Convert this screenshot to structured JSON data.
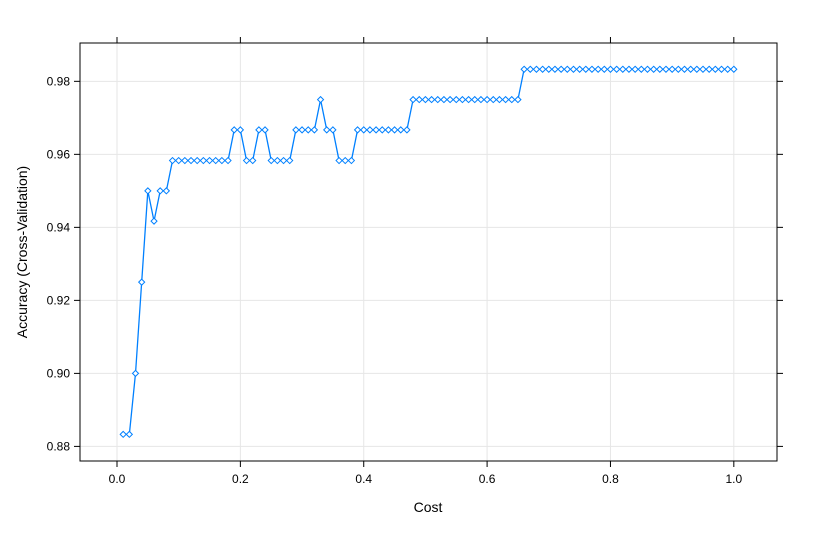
{
  "chart_data": {
    "type": "line",
    "title": "",
    "xlabel": "Cost",
    "ylabel": "Accuracy (Cross-Validation)",
    "xlim": [
      -0.06,
      1.07
    ],
    "ylim": [
      0.876,
      0.9905
    ],
    "x_ticks": [
      0.0,
      0.2,
      0.4,
      0.6,
      0.8,
      1.0
    ],
    "x_tick_labels": [
      "0.0",
      "0.2",
      "0.4",
      "0.6",
      "0.8",
      "1.0"
    ],
    "y_ticks": [
      0.88,
      0.9,
      0.92,
      0.94,
      0.96,
      0.98
    ],
    "y_tick_labels": [
      "0.88",
      "0.90",
      "0.92",
      "0.94",
      "0.96",
      "0.98"
    ],
    "grid": true,
    "line_color": "#0080ff",
    "marker": "diamond",
    "x": [
      0.01,
      0.02,
      0.03,
      0.04,
      0.05,
      0.06,
      0.07,
      0.08,
      0.09,
      0.1,
      0.11,
      0.12,
      0.13,
      0.14,
      0.15,
      0.16,
      0.17,
      0.18,
      0.19,
      0.2,
      0.21,
      0.22,
      0.23,
      0.24,
      0.25,
      0.26,
      0.27,
      0.28,
      0.29,
      0.3,
      0.31,
      0.32,
      0.33,
      0.34,
      0.35,
      0.36,
      0.37,
      0.38,
      0.39,
      0.4,
      0.41,
      0.42,
      0.43,
      0.44,
      0.45,
      0.46,
      0.47,
      0.48,
      0.49,
      0.5,
      0.51,
      0.52,
      0.53,
      0.54,
      0.55,
      0.56,
      0.57,
      0.58,
      0.59,
      0.6,
      0.61,
      0.62,
      0.63,
      0.64,
      0.65,
      0.66,
      0.67,
      0.68,
      0.69,
      0.7,
      0.71,
      0.72,
      0.73,
      0.74,
      0.75,
      0.76,
      0.77,
      0.78,
      0.79,
      0.8,
      0.81,
      0.82,
      0.83,
      0.84,
      0.85,
      0.86,
      0.87,
      0.88,
      0.89,
      0.9,
      0.91,
      0.92,
      0.93,
      0.94,
      0.95,
      0.96,
      0.97,
      0.98,
      0.99,
      1.0
    ],
    "values": [
      0.8833,
      0.8833,
      0.9,
      0.925,
      0.95,
      0.9417,
      0.95,
      0.95,
      0.9583,
      0.9583,
      0.9583,
      0.9583,
      0.9583,
      0.9583,
      0.9583,
      0.9583,
      0.9583,
      0.9583,
      0.9667,
      0.9667,
      0.9583,
      0.9583,
      0.9667,
      0.9667,
      0.9583,
      0.9583,
      0.9583,
      0.9583,
      0.9667,
      0.9667,
      0.9667,
      0.9667,
      0.975,
      0.9667,
      0.9667,
      0.9583,
      0.9583,
      0.9583,
      0.9667,
      0.9667,
      0.9667,
      0.9667,
      0.9667,
      0.9667,
      0.9667,
      0.9667,
      0.9667,
      0.975,
      0.975,
      0.975,
      0.975,
      0.975,
      0.975,
      0.975,
      0.975,
      0.975,
      0.975,
      0.975,
      0.975,
      0.975,
      0.975,
      0.975,
      0.975,
      0.975,
      0.975,
      0.9833,
      0.9833,
      0.9833,
      0.9833,
      0.9833,
      0.9833,
      0.9833,
      0.9833,
      0.9833,
      0.9833,
      0.9833,
      0.9833,
      0.9833,
      0.9833,
      0.9833,
      0.9833,
      0.9833,
      0.9833,
      0.9833,
      0.9833,
      0.9833,
      0.9833,
      0.9833,
      0.9833,
      0.9833,
      0.9833,
      0.9833,
      0.9833,
      0.9833,
      0.9833,
      0.9833,
      0.9833,
      0.9833,
      0.9833,
      0.9833
    ]
  }
}
